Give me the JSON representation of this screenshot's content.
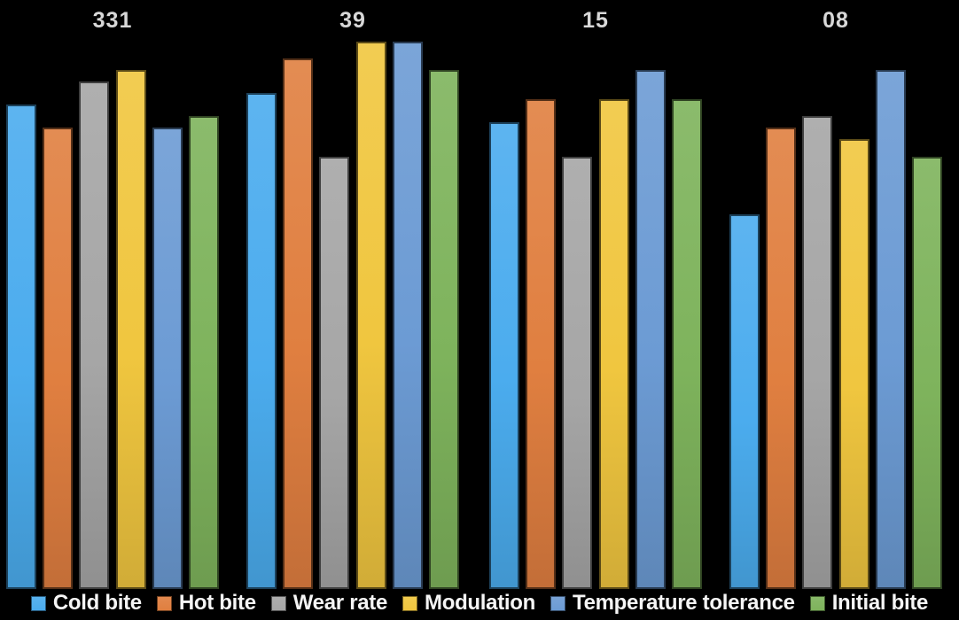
{
  "chart_data": {
    "type": "bar",
    "title": "",
    "xlabel": "",
    "ylabel": "",
    "categories": [
      "331",
      "39",
      "15",
      "08"
    ],
    "series": [
      {
        "name": "Cold bite",
        "color": "#4BACEE",
        "values": [
          8.4,
          8.6,
          8.1,
          6.5
        ]
      },
      {
        "name": "Hot bite",
        "color": "#E07F40",
        "values": [
          8.0,
          9.2,
          8.5,
          8.0
        ]
      },
      {
        "name": "Wear rate",
        "color": "#A6A6A6",
        "values": [
          8.8,
          7.5,
          7.5,
          8.2
        ]
      },
      {
        "name": "Modulation",
        "color": "#F0C63F",
        "values": [
          9.0,
          9.5,
          8.5,
          7.8
        ]
      },
      {
        "name": "Temperature tolerance",
        "color": "#6C9BD4",
        "values": [
          8.0,
          9.5,
          9.0,
          9.0
        ]
      },
      {
        "name": "Initial bite",
        "color": "#7EB35C",
        "values": [
          8.2,
          9.0,
          8.5,
          7.5
        ]
      }
    ],
    "ylim": [
      0,
      10
    ],
    "grid": false,
    "axes_visible": false,
    "legend_position": "bottom",
    "background_color": "#000000",
    "category_label_color": "#D8D8D8",
    "legend_text_color": "#F5F5F5"
  }
}
